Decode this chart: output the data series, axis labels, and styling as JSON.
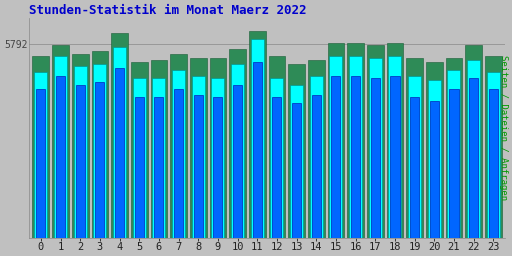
{
  "title": "Stunden-Statistik im Monat Maerz 2022",
  "title_color": "#0000CC",
  "ylabel": "Seiten / Dateien / Anfragen",
  "ylabel_color": "#009900",
  "background_color": "#C0C0C0",
  "plot_bg_color": "#C0C0C0",
  "bar_edge_color": "#000000",
  "green_color": "#2E8B57",
  "cyan_color": "#00FFFF",
  "blue_color": "#0066FF",
  "hours": [
    0,
    1,
    2,
    3,
    4,
    5,
    6,
    7,
    8,
    9,
    10,
    11,
    12,
    13,
    14,
    15,
    16,
    17,
    18,
    19,
    20,
    21,
    22,
    23
  ],
  "green_bars": [
    0.88,
    0.93,
    0.89,
    0.9,
    0.99,
    0.85,
    0.86,
    0.89,
    0.87,
    0.87,
    0.91,
    1.0,
    0.88,
    0.84,
    0.86,
    0.94,
    0.94,
    0.93,
    0.94,
    0.87,
    0.85,
    0.87,
    0.93,
    0.88
  ],
  "cyan_bars": [
    0.8,
    0.88,
    0.83,
    0.84,
    0.92,
    0.77,
    0.77,
    0.81,
    0.78,
    0.77,
    0.84,
    0.96,
    0.77,
    0.74,
    0.78,
    0.88,
    0.88,
    0.87,
    0.88,
    0.78,
    0.76,
    0.81,
    0.86,
    0.8
  ],
  "blue_bars": [
    0.72,
    0.78,
    0.74,
    0.75,
    0.82,
    0.68,
    0.68,
    0.72,
    0.69,
    0.68,
    0.74,
    0.85,
    0.68,
    0.65,
    0.69,
    0.78,
    0.78,
    0.77,
    0.78,
    0.68,
    0.66,
    0.72,
    0.77,
    0.72
  ],
  "ylim": [
    0,
    1.06
  ],
  "ytick_pos": 0.935,
  "ytick_label": "5792",
  "group_width": 0.85
}
